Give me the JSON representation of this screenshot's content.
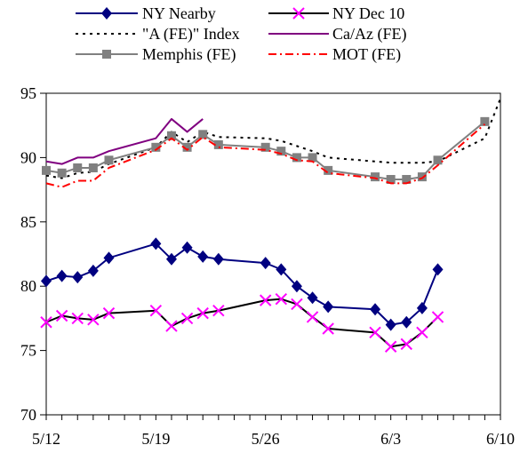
{
  "chart_data": {
    "type": "line",
    "title": "",
    "xlabel": "",
    "ylabel": "",
    "ylim": [
      70,
      95
    ],
    "yticks": [
      70,
      75,
      80,
      85,
      90,
      95
    ],
    "xlim": [
      "5/12",
      "6/10"
    ],
    "xtick_labels": [
      "5/12",
      "5/19",
      "5/26",
      "6/3",
      "6/10"
    ],
    "x_dates": [
      "5/12",
      "5/13",
      "5/14",
      "5/15",
      "5/16",
      "5/17",
      "5/18",
      "5/19",
      "5/20",
      "5/21",
      "5/22",
      "5/23",
      "5/24",
      "5/25",
      "5/26",
      "5/27",
      "5/28",
      "5/29",
      "5/30",
      "5/31",
      "6/1",
      "6/2",
      "6/3",
      "6/4",
      "6/5",
      "6/6",
      "6/7",
      "6/8",
      "6/9",
      "6/10"
    ],
    "grid": false,
    "legend_position": "top",
    "series": [
      {
        "name": "NY Nearby",
        "color": "#000080",
        "marker": "diamond",
        "x": [
          "5/12",
          "5/13",
          "5/14",
          "5/15",
          "5/16",
          "5/19",
          "5/20",
          "5/21",
          "5/22",
          "5/23",
          "5/26",
          "5/27",
          "5/28",
          "5/29",
          "5/30",
          "6/2",
          "6/3",
          "6/4",
          "6/5",
          "6/6",
          "6/9"
        ],
        "values": [
          80.4,
          80.8,
          80.7,
          81.2,
          82.2,
          83.3,
          82.1,
          83.0,
          82.3,
          82.1,
          81.8,
          81.3,
          80.0,
          79.1,
          78.4,
          78.2,
          77.0,
          77.2,
          78.3,
          81.3,
          null
        ]
      },
      {
        "name": "NY Dec 10",
        "color": "#000000",
        "marker": "x",
        "marker_color": "#ff00ff",
        "x": [
          "5/12",
          "5/13",
          "5/14",
          "5/15",
          "5/16",
          "5/19",
          "5/20",
          "5/21",
          "5/22",
          "5/23",
          "5/26",
          "5/27",
          "5/28",
          "5/29",
          "5/30",
          "6/2",
          "6/3",
          "6/4",
          "6/5",
          "6/6"
        ],
        "values": [
          77.2,
          77.7,
          77.5,
          77.4,
          77.9,
          78.1,
          76.9,
          77.5,
          77.9,
          78.1,
          78.9,
          79.0,
          78.6,
          77.6,
          76.7,
          76.4,
          75.3,
          75.5,
          76.4,
          77.6
        ]
      },
      {
        "name": "\"A (FE)\" Index",
        "color": "#000000",
        "dash": "dot",
        "x": [
          "5/12",
          "5/13",
          "5/14",
          "5/15",
          "5/16",
          "5/19",
          "5/20",
          "5/21",
          "5/22",
          "5/23",
          "5/26",
          "5/27",
          "5/28",
          "5/29",
          "5/30",
          "6/2",
          "6/3",
          "6/4",
          "6/5",
          "6/6",
          "6/9",
          "6/10"
        ],
        "values": [
          88.6,
          88.4,
          88.8,
          88.9,
          89.5,
          90.8,
          92.0,
          91.2,
          92.0,
          91.6,
          91.5,
          91.3,
          90.9,
          90.5,
          90.0,
          89.7,
          89.6,
          89.6,
          89.6,
          89.7,
          91.5,
          94.6
        ]
      },
      {
        "name": "Ca/Az (FE)",
        "color": "#800080",
        "x": [
          "5/12",
          "5/13",
          "5/14",
          "5/15",
          "5/16",
          "5/19",
          "5/20",
          "5/21",
          "5/22",
          "5/23"
        ],
        "values": [
          89.7,
          89.5,
          90.0,
          90.0,
          90.5,
          91.5,
          93.0,
          92.0,
          93.0,
          null
        ]
      },
      {
        "name": "Memphis (FE)",
        "color": "#808080",
        "marker": "square",
        "x": [
          "5/12",
          "5/13",
          "5/14",
          "5/15",
          "5/16",
          "5/19",
          "5/20",
          "5/21",
          "5/22",
          "5/23",
          "5/26",
          "5/27",
          "5/28",
          "5/29",
          "5/30",
          "6/2",
          "6/3",
          "6/4",
          "6/5",
          "6/6",
          "6/9"
        ],
        "values": [
          89.0,
          88.8,
          89.2,
          89.2,
          89.8,
          90.8,
          91.7,
          90.8,
          91.8,
          91.0,
          90.8,
          90.5,
          90.0,
          90.0,
          89.0,
          88.5,
          88.3,
          88.3,
          88.5,
          89.8,
          92.8
        ]
      },
      {
        "name": "MOT (FE)",
        "color": "#ff0000",
        "dash": "dashdot",
        "x": [
          "5/12",
          "5/13",
          "5/14",
          "5/15",
          "5/16",
          "5/19",
          "5/20",
          "5/21",
          "5/22",
          "5/23",
          "5/26",
          "5/27",
          "5/28",
          "5/29",
          "5/30",
          "6/2",
          "6/3",
          "6/4",
          "6/5",
          "6/6",
          "6/9"
        ],
        "values": [
          88.0,
          87.7,
          88.2,
          88.2,
          89.2,
          90.6,
          91.5,
          90.6,
          91.6,
          90.8,
          90.6,
          90.3,
          89.8,
          89.7,
          88.8,
          88.4,
          88.0,
          88.0,
          88.4,
          89.4,
          92.6
        ]
      }
    ]
  }
}
